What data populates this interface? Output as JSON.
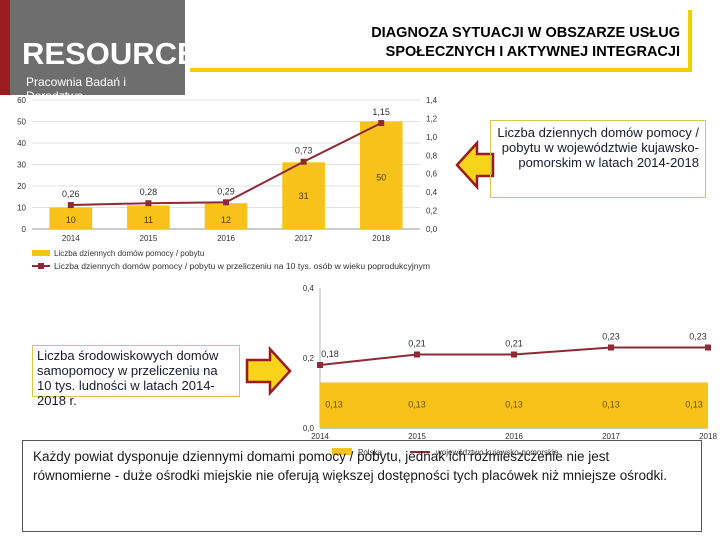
{
  "header": {
    "logo_main": "RESOURCE",
    "logo_sub": "Pracownia Badań i Doradztwa",
    "title_line1": "DIAGNOZA SYTUACJI W OBSZARZE USŁUG",
    "title_line2": "SPOŁECZNYCH I AKTYWNEJ INTEGRACJI"
  },
  "callouts": {
    "top": "Liczba dziennych domów pomocy / pobytu w województwie kujawsko-pomorskim w latach 2014-2018",
    "bottom": "Liczba środowiskowych domów samopomocy w przeliczeniu na 10 tys. ludności w latach 2014-2018 r."
  },
  "note": "Każdy powiat dysponuje dziennymi domami pomocy / pobytu, jednak ich rozmieszczenie nie jest równomierne - duże ośrodki miejskie nie oferują większej dostępności tych placówek niż mniejsze ośrodki.",
  "colors": {
    "bar": "#f7c21a",
    "line": "#8e2a34",
    "accent": "#f0d100",
    "logo_bg": "#6e6e6e"
  },
  "chart_data": [
    {
      "type": "bar",
      "categories": [
        "2014",
        "2015",
        "2016",
        "2017",
        "2018"
      ],
      "series": [
        {
          "name": "Liczba dziennych domów pomocy / pobytu",
          "kind": "bar",
          "axis": "left",
          "values": [
            10,
            11,
            12,
            31,
            50
          ],
          "labels": [
            "10",
            "11",
            "12",
            "31",
            "50"
          ]
        },
        {
          "name": "Liczba dziennych domów pomocy / pobytu w przeliczeniu na 10 tys. osób w wieku poprodukcyjnym",
          "kind": "line",
          "axis": "right",
          "values": [
            0.26,
            0.28,
            0.29,
            0.73,
            1.15
          ],
          "labels": [
            "0,26",
            "0,28",
            "0,29",
            "0,73",
            "1,15"
          ]
        }
      ],
      "left_axis": {
        "min": 0,
        "max": 60,
        "ticks": [
          "0",
          "10",
          "20",
          "30",
          "40",
          "50",
          "60"
        ]
      },
      "right_axis": {
        "min": 0,
        "max": 1.4,
        "ticks": [
          "0,0",
          "0,2",
          "0,4",
          "0,6",
          "0,8",
          "1,0",
          "1,2",
          "1,4"
        ]
      },
      "legend": "bottom-left"
    },
    {
      "type": "area",
      "categories": [
        "2014",
        "2015",
        "2016",
        "2017",
        "2018"
      ],
      "series": [
        {
          "name": "Polska",
          "kind": "area",
          "values": [
            0.13,
            0.13,
            0.13,
            0.13,
            0.13
          ],
          "labels": [
            "0,13",
            "0,13",
            "0,13",
            "0,13",
            "0,13"
          ]
        },
        {
          "name": "województwo kujawsko-pomorskie",
          "kind": "line",
          "values": [
            0.18,
            0.21,
            0.21,
            0.23,
            0.23
          ],
          "labels": [
            "0,18",
            "0,21",
            "0,21",
            "0,23",
            "0,23"
          ]
        }
      ],
      "y_axis": {
        "min": 0,
        "max": 0.4,
        "ticks": [
          "0,0",
          "0,2",
          "0,4"
        ]
      },
      "legend": "bottom"
    }
  ]
}
